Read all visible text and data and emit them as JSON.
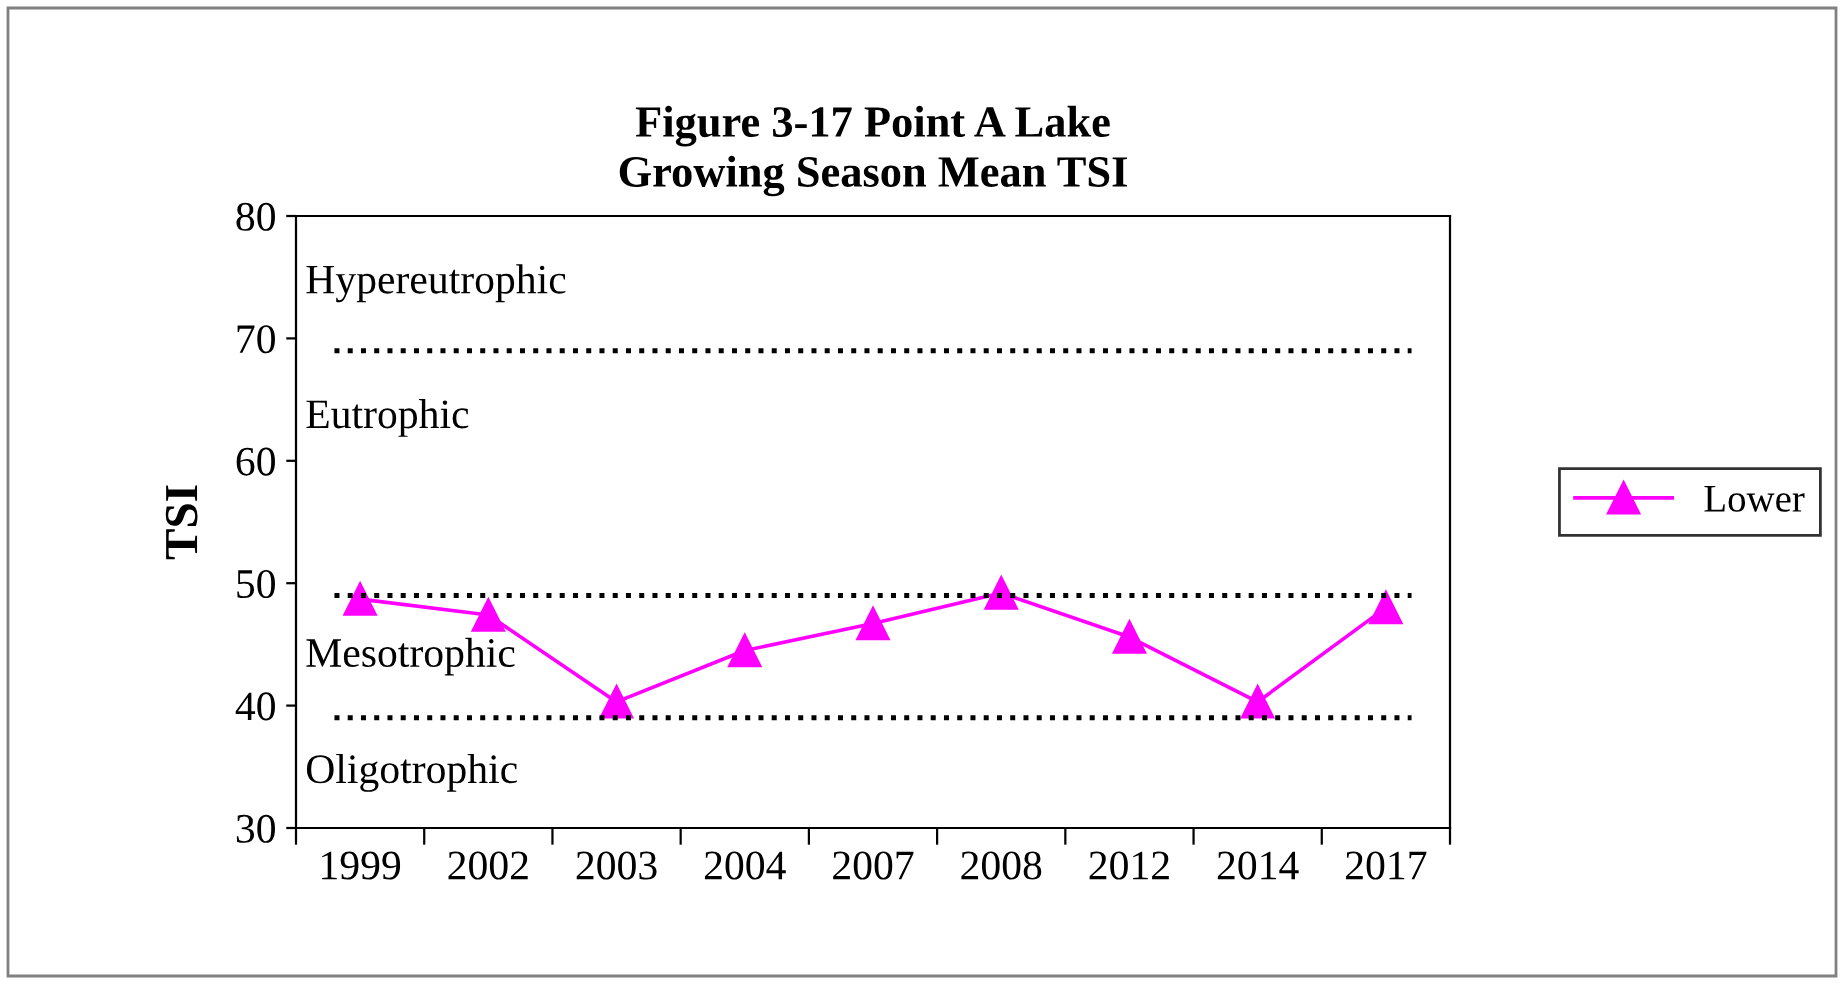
{
  "chart_data": {
    "type": "line",
    "title": "Figure 3-17 Point A Lake\nGrowing Season Mean TSI",
    "ylabel": "TSI",
    "categories": [
      "1999",
      "2002",
      "2003",
      "2004",
      "2007",
      "2008",
      "2012",
      "2014",
      "2017"
    ],
    "series": [
      {
        "name": "Lower",
        "color": "#ff00ff",
        "values": [
          48.7,
          47.4,
          40.3,
          44.5,
          46.7,
          49.2,
          45.6,
          40.3,
          48.0
        ]
      }
    ],
    "ylim": [
      30,
      80
    ],
    "yticks": [
      30,
      40,
      50,
      60,
      70,
      80
    ],
    "grid": false,
    "legend": "right",
    "marker": "triangle",
    "line_style": "solid",
    "ref_lines": [
      {
        "axis": "y",
        "value": 69,
        "color": "#000000",
        "line_style": "dotted"
      },
      {
        "axis": "y",
        "value": 49,
        "color": "#000000",
        "line_style": "dotted"
      },
      {
        "axis": "y",
        "value": 39,
        "color": "#000000",
        "line_style": "dotted"
      }
    ],
    "annotations": [
      "Hypereutrophic",
      "Eutrophic",
      "Mesotrophic",
      "Oligotrophic"
    ]
  }
}
